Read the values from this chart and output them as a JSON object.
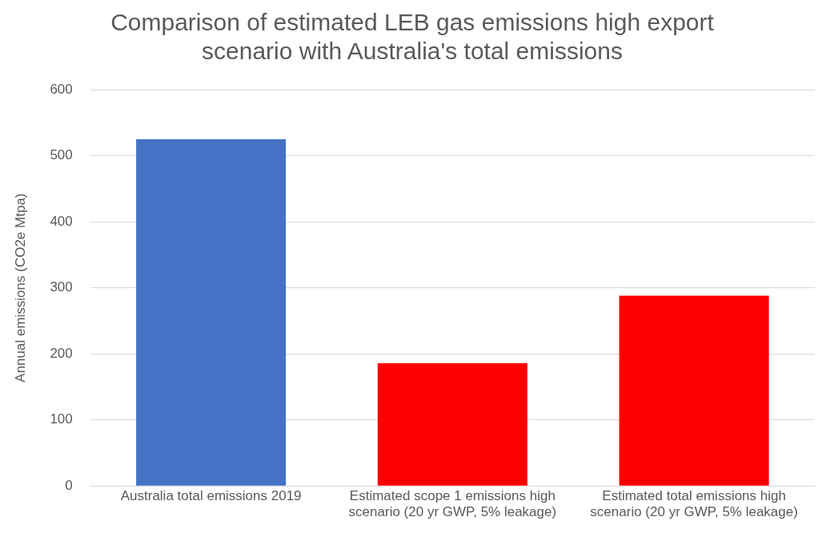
{
  "chart_data": {
    "type": "bar",
    "title": "Comparison of estimated LEB gas emissions high export scenario with Australia's total emissions",
    "ylabel": "Annual emissions (CO2e Mtpa)",
    "categories": [
      "Australia total emissions 2019",
      "Estimated scope 1 emissions high scenario (20 yr GWP, 5% leakage)",
      "Estimated total emissions high scenario (20 yr GWP, 5% leakage)"
    ],
    "values": [
      525,
      186,
      288
    ],
    "colors": [
      "#4472c4",
      "#ff0000",
      "#ff0000"
    ],
    "ylim": [
      0,
      600
    ],
    "yticks": [
      0,
      100,
      200,
      300,
      400,
      500,
      600
    ],
    "grid": "y",
    "legend": false
  }
}
